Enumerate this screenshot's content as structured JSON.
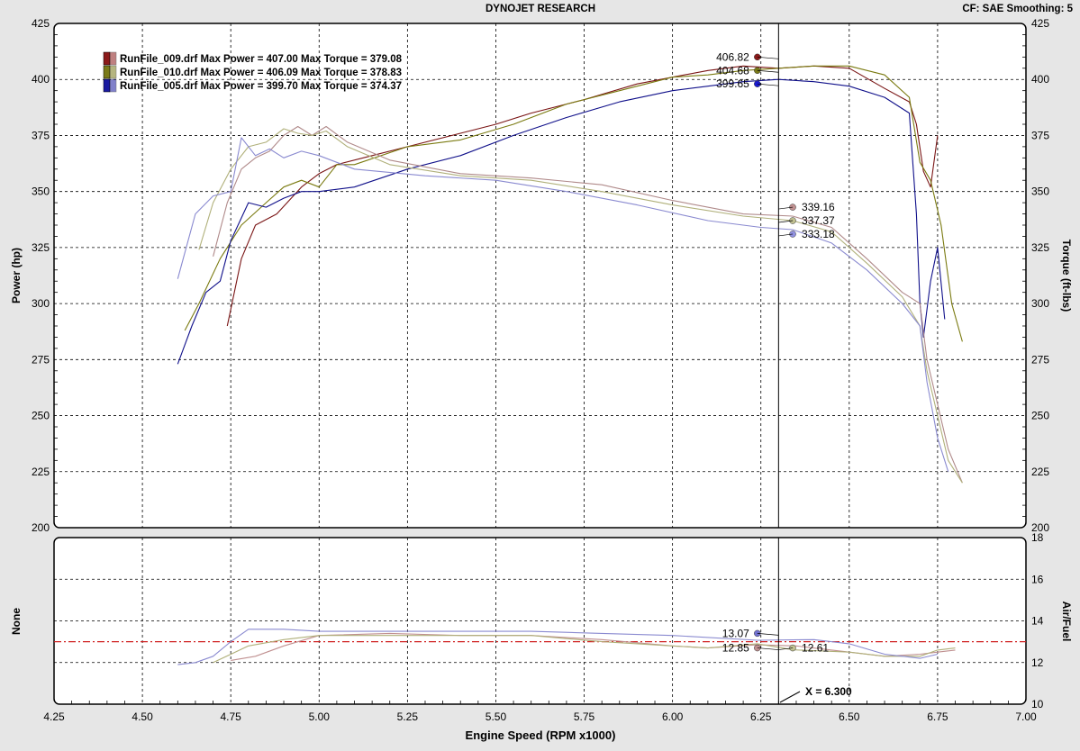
{
  "header": {
    "title": "DYNOJET RESEARCH",
    "settings": "CF: SAE  Smoothing: 5"
  },
  "chart_data": [
    {
      "type": "line",
      "panel": "power-torque",
      "ylabel_left": "Power (hp)",
      "ylabel_right": "Torque (ft-lbs)",
      "xlim": [
        4.25,
        7.0
      ],
      "ylim_left": [
        200,
        425
      ],
      "ylim_right": [
        200,
        425
      ],
      "y_ticks": [
        "425",
        "400",
        "375",
        "350",
        "325",
        "300",
        "275",
        "250",
        "225",
        "200"
      ],
      "legend": [
        {
          "label": "RunFile_009.drf Max Power = 407.00 Max Torque = 379.08",
          "color": "#8b1a1a"
        },
        {
          "label": "RunFile_010.drf Max Power = 406.09 Max Torque = 378.83",
          "color": "#7a7a1a"
        },
        {
          "label": "RunFile_005.drf Max Power = 399.70 Max Torque = 374.37",
          "color": "#1a1aa0"
        }
      ],
      "series": [
        {
          "name": "RunFile_009.drf Power",
          "color": "#7a1515",
          "x": [
            4.74,
            4.78,
            4.82,
            4.88,
            4.95,
            5.0,
            5.05,
            5.15,
            5.25,
            5.4,
            5.5,
            5.6,
            5.75,
            5.9,
            6.0,
            6.1,
            6.2,
            6.3,
            6.4,
            6.5,
            6.6,
            6.67,
            6.69,
            6.71,
            6.73,
            6.75
          ],
          "y": [
            290,
            320,
            335,
            340,
            352,
            358,
            362,
            366,
            370,
            376,
            380,
            385,
            391,
            398,
            401,
            404,
            406,
            405,
            406,
            405,
            396,
            390,
            380,
            359,
            352,
            375
          ]
        },
        {
          "name": "RunFile_010.drf Power",
          "color": "#7a7a10",
          "x": [
            4.62,
            4.66,
            4.72,
            4.78,
            4.85,
            4.9,
            4.95,
            5.0,
            5.05,
            5.1,
            5.25,
            5.4,
            5.55,
            5.7,
            5.85,
            6.0,
            6.1,
            6.2,
            6.3,
            6.4,
            6.5,
            6.6,
            6.67,
            6.7,
            6.73,
            6.76,
            6.79,
            6.82
          ],
          "y": [
            288,
            300,
            320,
            335,
            345,
            352,
            355,
            352,
            362,
            362,
            370,
            373,
            380,
            389,
            395,
            401,
            402,
            404,
            405,
            406,
            406,
            402,
            392,
            363,
            355,
            335,
            300,
            283
          ]
        },
        {
          "name": "RunFile_005.drf Power",
          "color": "#10108a",
          "x": [
            4.6,
            4.64,
            4.68,
            4.72,
            4.75,
            4.8,
            4.85,
            4.9,
            4.95,
            5.0,
            5.1,
            5.25,
            5.4,
            5.55,
            5.7,
            5.85,
            6.0,
            6.1,
            6.2,
            6.3,
            6.4,
            6.5,
            6.6,
            6.67,
            6.69,
            6.7,
            6.71,
            6.73,
            6.75,
            6.77
          ],
          "y": [
            273,
            290,
            305,
            310,
            328,
            345,
            343,
            347,
            350,
            350,
            352,
            360,
            366,
            375,
            383,
            390,
            395,
            397,
            399,
            400,
            399,
            397,
            392,
            385,
            340,
            300,
            285,
            310,
            325,
            293
          ]
        },
        {
          "name": "RunFile_009.drf Torque",
          "color": "#b08a8a",
          "x": [
            4.7,
            4.74,
            4.78,
            4.82,
            4.86,
            4.9,
            4.94,
            4.98,
            5.02,
            5.08,
            5.2,
            5.4,
            5.6,
            5.8,
            6.0,
            6.2,
            6.34,
            6.45,
            6.55,
            6.65,
            6.7,
            6.72,
            6.75,
            6.78,
            6.82
          ],
          "y": [
            321,
            345,
            360,
            365,
            368,
            375,
            379,
            375,
            379,
            372,
            364,
            358,
            356,
            353,
            346,
            340,
            339,
            334,
            320,
            305,
            300,
            275,
            255,
            235,
            220
          ]
        },
        {
          "name": "RunFile_010.drf Torque",
          "color": "#b0b07a",
          "x": [
            4.66,
            4.7,
            4.75,
            4.8,
            4.85,
            4.9,
            4.94,
            4.98,
            5.02,
            5.08,
            5.2,
            5.4,
            5.6,
            5.8,
            6.0,
            6.2,
            6.34,
            6.45,
            6.55,
            6.65,
            6.7,
            6.72,
            6.75,
            6.78,
            6.82
          ],
          "y": [
            324,
            345,
            360,
            370,
            372,
            378,
            376,
            375,
            377,
            370,
            362,
            357,
            355,
            350,
            344,
            339,
            337,
            332,
            318,
            303,
            290,
            270,
            250,
            230,
            220
          ]
        },
        {
          "name": "RunFile_005.drf Torque",
          "color": "#8a8ad0",
          "x": [
            4.6,
            4.65,
            4.7,
            4.75,
            4.78,
            4.82,
            4.86,
            4.9,
            4.95,
            5.0,
            5.1,
            5.3,
            5.5,
            5.7,
            5.9,
            6.1,
            6.25,
            6.34,
            6.45,
            6.55,
            6.65,
            6.7,
            6.72,
            6.75,
            6.78
          ],
          "y": [
            311,
            340,
            348,
            350,
            374,
            366,
            369,
            365,
            368,
            366,
            360,
            357,
            355,
            350,
            344,
            337,
            334,
            333,
            327,
            315,
            300,
            290,
            265,
            240,
            225
          ]
        }
      ],
      "markers": [
        {
          "value": "406.82",
          "x": 6.24,
          "y": 410,
          "color": "#8b1a1a"
        },
        {
          "value": "404.68",
          "x": 6.24,
          "y": 404,
          "color": "#7a7a1a"
        },
        {
          "value": "399.65",
          "x": 6.24,
          "y": 398,
          "color": "#1a1ad0"
        },
        {
          "value": "339.16",
          "x": 6.34,
          "y": 343,
          "color": "#c09090"
        },
        {
          "value": "337.37",
          "x": 6.34,
          "y": 337,
          "color": "#c0c090"
        },
        {
          "value": "333.18",
          "x": 6.34,
          "y": 331,
          "color": "#9090e0"
        }
      ]
    },
    {
      "type": "line",
      "panel": "air-fuel",
      "ylabel_left": "None",
      "ylabel_right": "Air/Fuel",
      "xlabel": "Engine Speed (RPM x1000)",
      "xlim": [
        4.25,
        7.0
      ],
      "ylim_right": [
        10,
        18
      ],
      "y_ticks": [
        "18",
        "16",
        "14",
        "12",
        "10"
      ],
      "x_ticks": [
        "4.25",
        "4.50",
        "4.75",
        "5.00",
        "5.25",
        "5.50",
        "5.75",
        "6.00",
        "6.25",
        "6.50",
        "6.75",
        "7.00"
      ],
      "reference_line": 13,
      "series": [
        {
          "name": "RunFile_009.drf A/F",
          "color": "#c09090",
          "x": [
            4.75,
            4.82,
            4.9,
            5.0,
            5.2,
            5.4,
            5.6,
            5.8,
            6.0,
            6.1,
            6.24,
            6.35,
            6.5,
            6.6,
            6.7,
            6.75,
            6.8
          ],
          "y": [
            12.1,
            12.3,
            12.8,
            13.3,
            13.4,
            13.3,
            13.3,
            13.1,
            12.8,
            12.7,
            12.85,
            12.8,
            12.5,
            12.3,
            12.4,
            12.5,
            12.6
          ]
        },
        {
          "name": "RunFile_010.drf A/F",
          "color": "#b0b07a",
          "x": [
            4.7,
            4.8,
            4.9,
            5.0,
            5.2,
            5.4,
            5.6,
            5.8,
            6.0,
            6.1,
            6.24,
            6.34,
            6.5,
            6.6,
            6.7,
            6.75,
            6.8
          ],
          "y": [
            12.0,
            12.8,
            13.1,
            13.3,
            13.3,
            13.3,
            13.3,
            13.0,
            12.8,
            12.7,
            12.9,
            12.61,
            12.5,
            12.3,
            12.3,
            12.6,
            12.7
          ]
        },
        {
          "name": "RunFile_005.drf A/F",
          "color": "#8a8ad0",
          "x": [
            4.6,
            4.65,
            4.7,
            4.75,
            4.8,
            4.9,
            5.0,
            5.2,
            5.4,
            5.6,
            5.8,
            6.0,
            6.24,
            6.4,
            6.5,
            6.6,
            6.7,
            6.75
          ],
          "y": [
            11.9,
            12.0,
            12.3,
            13.0,
            13.6,
            13.6,
            13.5,
            13.5,
            13.5,
            13.5,
            13.4,
            13.3,
            13.07,
            13.1,
            12.9,
            12.4,
            12.2,
            12.4
          ]
        }
      ],
      "markers": [
        {
          "value": "13.07",
          "x": 6.24,
          "y": 13.4,
          "color": "#7070d0"
        },
        {
          "value": "12.85",
          "x": 6.24,
          "y": 12.7,
          "color": "#c09090"
        },
        {
          "value": "12.61",
          "x": 6.34,
          "y": 12.7,
          "color": "#c0c090"
        }
      ],
      "cursor_label": "X = 6.300",
      "cursor_x": 6.3
    }
  ]
}
